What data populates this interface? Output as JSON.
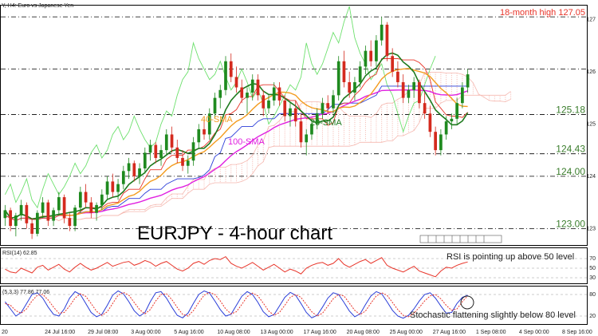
{
  "header": {
    "symbol_line": "Y, H4:  Euro vs Japanese Yen"
  },
  "chart_data": [
    {
      "type": "candlestick",
      "title": "EURJPY - 4-hour chart",
      "symbol": "EURJPY",
      "timeframe": "4-hour",
      "ylim": [
        122.7,
        127.25
      ],
      "yticks": [
        "127",
        "126",
        "125",
        "124",
        "123"
      ],
      "xticks": [
        "20",
        "24 Jul 16:00",
        "29 Jul 08:00",
        "3 Aug 00:00",
        "5 Aug 16:00",
        "10 Aug 08:00",
        "13 Aug 00:00",
        "17 Aug 16:00",
        "20 Aug 08:00",
        "25 Aug 00:00",
        "27 Aug 16:00",
        "1 Sep 08:00",
        "4 Sep 00:00",
        "8 Sep 16:00"
      ],
      "levels": [
        {
          "value": 127.05,
          "label": "18-month high 127.05",
          "color": "#e8352a",
          "style": "dash-dot"
        },
        {
          "value": 126.05,
          "label": "",
          "color": "#000000",
          "style": "dash-dot"
        },
        {
          "value": 125.18,
          "label": "125.18",
          "color": "#3a7d2c",
          "style": "dash-dot"
        },
        {
          "value": 124.43,
          "label": "124.43",
          "color": "#3a7d2c",
          "style": "dash-dot"
        },
        {
          "value": 124.0,
          "label": "124.00",
          "color": "#3a7d2c",
          "style": "dash-dot"
        },
        {
          "value": 123.0,
          "label": "123.00",
          "color": "#3a7d2c",
          "style": "dash-dot"
        }
      ],
      "moving_averages": [
        {
          "name": "20-SMA",
          "color": "#1e7a1e"
        },
        {
          "name": "40-SMA",
          "color": "#f39c1f"
        },
        {
          "name": "100-SMA",
          "color": "#e020e0"
        }
      ],
      "ichimoku_colors": {
        "tenkan": "#e8352a",
        "kijun": "#2a3dd8",
        "chikou": "#6de06d",
        "cloud": "#f5b8b0"
      },
      "candles_ohlc": [
        [
          123.2,
          123.45,
          123.05,
          123.35
        ],
        [
          123.35,
          123.4,
          122.95,
          123.05
        ],
        [
          123.05,
          123.3,
          122.85,
          123.25
        ],
        [
          123.25,
          123.55,
          123.15,
          123.45
        ],
        [
          123.45,
          123.5,
          123.0,
          123.1
        ],
        [
          123.1,
          123.2,
          122.8,
          122.9
        ],
        [
          122.9,
          123.35,
          122.85,
          123.3
        ],
        [
          123.3,
          123.6,
          123.2,
          123.5
        ],
        [
          123.5,
          123.55,
          123.05,
          123.15
        ],
        [
          123.15,
          123.4,
          123.05,
          123.35
        ],
        [
          123.35,
          123.7,
          123.25,
          123.6
        ],
        [
          123.6,
          123.65,
          123.1,
          123.2
        ],
        [
          123.2,
          123.3,
          122.95,
          123.05
        ],
        [
          123.05,
          123.45,
          122.95,
          123.4
        ],
        [
          123.4,
          123.8,
          123.3,
          123.7
        ],
        [
          123.7,
          123.85,
          123.4,
          123.5
        ],
        [
          123.5,
          123.6,
          123.2,
          123.3
        ],
        [
          123.3,
          123.5,
          123.15,
          123.45
        ],
        [
          123.45,
          123.75,
          123.35,
          123.65
        ],
        [
          123.65,
          124.0,
          123.55,
          123.9
        ],
        [
          123.9,
          124.05,
          123.6,
          123.7
        ],
        [
          123.7,
          123.95,
          123.55,
          123.85
        ],
        [
          123.85,
          124.2,
          123.75,
          124.1
        ],
        [
          124.1,
          124.35,
          123.95,
          124.25
        ],
        [
          124.25,
          124.3,
          123.9,
          124.0
        ],
        [
          124.0,
          124.25,
          123.85,
          124.15
        ],
        [
          124.15,
          124.55,
          124.05,
          124.45
        ],
        [
          124.45,
          124.7,
          124.3,
          124.6
        ],
        [
          124.6,
          124.65,
          124.25,
          124.35
        ],
        [
          124.35,
          124.6,
          124.2,
          124.5
        ],
        [
          124.5,
          124.9,
          124.4,
          124.8
        ],
        [
          124.8,
          124.95,
          124.45,
          124.55
        ],
        [
          124.55,
          124.7,
          124.25,
          124.35
        ],
        [
          124.35,
          124.5,
          124.1,
          124.2
        ],
        [
          124.2,
          124.4,
          124.05,
          124.3
        ],
        [
          124.3,
          124.75,
          124.2,
          124.65
        ],
        [
          124.65,
          125.0,
          124.55,
          124.9
        ],
        [
          124.9,
          125.1,
          124.7,
          124.8
        ],
        [
          124.8,
          125.3,
          124.7,
          125.2
        ],
        [
          125.2,
          125.6,
          125.1,
          125.5
        ],
        [
          125.5,
          125.75,
          125.3,
          125.65
        ],
        [
          125.65,
          126.3,
          125.55,
          126.2
        ],
        [
          126.2,
          126.35,
          125.8,
          125.9
        ],
        [
          125.9,
          126.1,
          125.6,
          125.7
        ],
        [
          125.7,
          125.85,
          125.4,
          125.5
        ],
        [
          125.5,
          125.7,
          125.2,
          125.6
        ],
        [
          125.6,
          125.95,
          125.45,
          125.85
        ],
        [
          125.85,
          125.95,
          125.45,
          125.55
        ],
        [
          125.55,
          125.65,
          125.15,
          125.3
        ],
        [
          125.3,
          125.55,
          125.2,
          125.45
        ],
        [
          125.45,
          125.8,
          125.35,
          125.7
        ],
        [
          125.7,
          125.8,
          125.35,
          125.45
        ],
        [
          125.45,
          125.55,
          125.05,
          125.15
        ],
        [
          125.15,
          125.4,
          124.95,
          125.3
        ],
        [
          125.3,
          125.45,
          124.95,
          125.05
        ],
        [
          125.05,
          125.2,
          124.55,
          124.65
        ],
        [
          124.65,
          124.9,
          124.4,
          124.8
        ],
        [
          124.8,
          125.1,
          124.7,
          125.0
        ],
        [
          125.0,
          125.3,
          124.9,
          125.2
        ],
        [
          125.2,
          125.5,
          125.1,
          125.4
        ],
        [
          125.4,
          125.55,
          125.2,
          125.3
        ],
        [
          125.3,
          125.65,
          125.2,
          125.55
        ],
        [
          125.55,
          126.3,
          125.45,
          126.2
        ],
        [
          126.2,
          126.4,
          125.7,
          125.8
        ],
        [
          125.8,
          126.0,
          125.5,
          125.6
        ],
        [
          125.6,
          125.9,
          125.45,
          125.8
        ],
        [
          125.8,
          126.2,
          125.7,
          126.1
        ],
        [
          126.1,
          126.5,
          125.95,
          126.4
        ],
        [
          126.4,
          126.6,
          126.1,
          126.2
        ],
        [
          126.2,
          126.7,
          126.1,
          126.6
        ],
        [
          126.6,
          127.05,
          126.5,
          126.9
        ],
        [
          126.9,
          126.95,
          126.2,
          126.3
        ],
        [
          126.3,
          126.45,
          125.9,
          126.0
        ],
        [
          126.0,
          126.2,
          125.7,
          125.8
        ],
        [
          125.8,
          125.95,
          125.4,
          125.5
        ],
        [
          125.5,
          125.75,
          125.4,
          125.65
        ],
        [
          125.65,
          125.9,
          125.5,
          125.8
        ],
        [
          125.8,
          125.85,
          125.3,
          125.4
        ],
        [
          125.4,
          125.6,
          125.1,
          125.2
        ],
        [
          125.2,
          125.35,
          124.75,
          124.85
        ],
        [
          124.85,
          124.95,
          124.4,
          124.5
        ],
        [
          124.5,
          124.9,
          124.4,
          124.8
        ],
        [
          124.8,
          125.15,
          124.7,
          125.05
        ],
        [
          125.05,
          125.2,
          124.9,
          125.1
        ],
        [
          125.1,
          125.5,
          125.0,
          125.4
        ],
        [
          125.4,
          125.8,
          125.3,
          125.7
        ],
        [
          125.7,
          126.05,
          125.6,
          125.95
        ]
      ]
    },
    {
      "type": "line",
      "name": "RSI",
      "legend": "(14) 62.85",
      "annotation": "RSI is pointing up above 50 level",
      "ylim": [
        20,
        90
      ],
      "yticks": [
        "70",
        "50",
        "30"
      ],
      "values": [
        48,
        42,
        40,
        50,
        45,
        40,
        52,
        56,
        46,
        52,
        58,
        48,
        42,
        52,
        60,
        52,
        46,
        50,
        56,
        62,
        54,
        58,
        62,
        64,
        56,
        60,
        66,
        62,
        54,
        60,
        64,
        56,
        48,
        44,
        50,
        60,
        64,
        58,
        66,
        70,
        68,
        74,
        60,
        54,
        50,
        56,
        62,
        54,
        46,
        52,
        58,
        50,
        42,
        48,
        44,
        38,
        50,
        56,
        60,
        62,
        56,
        60,
        70,
        58,
        52,
        58,
        64,
        68,
        60,
        66,
        72,
        56,
        50,
        46,
        42,
        48,
        54,
        44,
        40,
        36,
        32,
        44,
        52,
        50,
        56,
        60,
        63
      ]
    },
    {
      "type": "line",
      "name": "Stochastic",
      "legend": "(5,3,3) 77.86 77.06",
      "annotation": "Stochastic flattening slightly below 80 level",
      "ylim": [
        0,
        100
      ],
      "yticks": [
        "80",
        "20"
      ],
      "series_colors": [
        "#2a3dd8",
        "#e8352a"
      ],
      "k_values": [
        60,
        40,
        20,
        30,
        55,
        80,
        85,
        70,
        45,
        25,
        20,
        40,
        70,
        88,
        80,
        55,
        30,
        18,
        25,
        50,
        78,
        90,
        82,
        60,
        35,
        20,
        30,
        60,
        85,
        88,
        70,
        45,
        22,
        15,
        28,
        55,
        80,
        90,
        84,
        62,
        38,
        20,
        25,
        50,
        75,
        88,
        80,
        58,
        32,
        18,
        24,
        48,
        72,
        86,
        78,
        55,
        30,
        15,
        22,
        45,
        70,
        85,
        80,
        58,
        34,
        18,
        26,
        52,
        76,
        88,
        82,
        60,
        36,
        20,
        14,
        22,
        40,
        62,
        80,
        85,
        70,
        48,
        28,
        30,
        55,
        72,
        78
      ],
      "d_values": [
        55,
        50,
        35,
        28,
        40,
        62,
        78,
        80,
        65,
        45,
        28,
        30,
        48,
        70,
        82,
        75,
        55,
        33,
        22,
        32,
        55,
        78,
        86,
        78,
        58,
        38,
        26,
        38,
        62,
        80,
        82,
        66,
        44,
        25,
        20,
        35,
        58,
        78,
        86,
        80,
        62,
        40,
        26,
        32,
        52,
        74,
        84,
        76,
        56,
        34,
        22,
        30,
        50,
        72,
        80,
        72,
        52,
        32,
        20,
        28,
        48,
        68,
        80,
        76,
        56,
        36,
        24,
        34,
        56,
        76,
        85,
        78,
        58,
        38,
        22,
        18,
        28,
        44,
        62,
        76,
        80,
        68,
        50,
        36,
        40,
        60,
        77
      ]
    }
  ]
}
